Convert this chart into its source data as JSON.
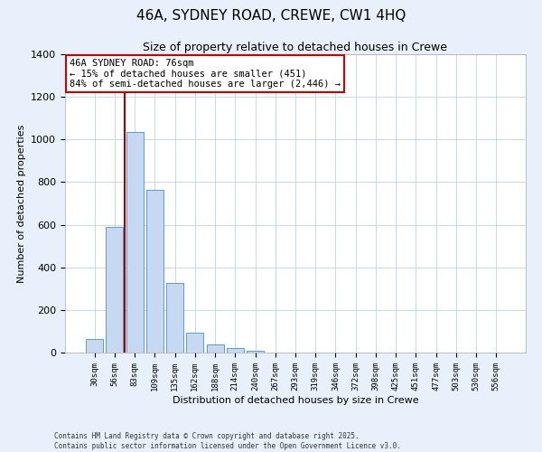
{
  "title": "46A, SYDNEY ROAD, CREWE, CW1 4HQ",
  "subtitle": "Size of property relative to detached houses in Crewe",
  "xlabel": "Distribution of detached houses by size in Crewe",
  "ylabel": "Number of detached properties",
  "bar_labels": [
    "30sqm",
    "56sqm",
    "83sqm",
    "109sqm",
    "135sqm",
    "162sqm",
    "188sqm",
    "214sqm",
    "240sqm",
    "267sqm",
    "293sqm",
    "319sqm",
    "346sqm",
    "372sqm",
    "398sqm",
    "425sqm",
    "451sqm",
    "477sqm",
    "503sqm",
    "530sqm",
    "556sqm"
  ],
  "bar_values": [
    65,
    590,
    1035,
    765,
    325,
    95,
    40,
    20,
    10,
    0,
    0,
    0,
    0,
    0,
    0,
    0,
    0,
    0,
    0,
    0,
    0
  ],
  "bar_color": "#c6d9f1",
  "bar_edge_color": "#5b9bd5",
  "ylim": [
    0,
    1400
  ],
  "yticks": [
    0,
    200,
    400,
    600,
    800,
    1000,
    1200,
    1400
  ],
  "vline_color": "#aa0000",
  "annotation_title": "46A SYDNEY ROAD: 76sqm",
  "annotation_line1": "← 15% of detached houses are smaller (451)",
  "annotation_line2": "84% of semi-detached houses are larger (2,446) →",
  "annotation_box_color": "#ffffff",
  "annotation_box_edge": "#cc0000",
  "footer_line1": "Contains HM Land Registry data © Crown copyright and database right 2025.",
  "footer_line2": "Contains public sector information licensed under the Open Government Licence v3.0.",
  "bg_color": "#e8f1fb",
  "plot_bg_color": "#ffffff",
  "grid_color": "#c8d8e8"
}
